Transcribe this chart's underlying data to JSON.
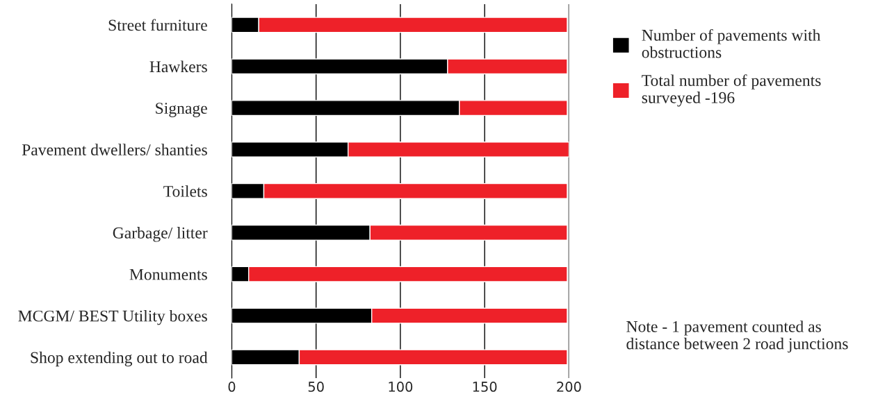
{
  "chart_data": {
    "type": "bar",
    "orientation": "horizontal",
    "stacked": true,
    "categories": [
      "Street furniture",
      "Hawkers",
      "Signage",
      "Pavement dwellers/ shanties",
      "Toilets",
      "Garbage/ litter",
      "Monuments",
      "MCGM/ BEST Utility boxes",
      "Shop extending out to road"
    ],
    "series": [
      {
        "name": "Number of pavements with\nobstructions",
        "color": "#000000",
        "values": [
          16,
          128,
          135,
          69,
          19,
          82,
          10,
          83,
          40
        ]
      },
      {
        "name": "Total number of pavements\nsurveyed -196",
        "color": "#ee2129",
        "values": [
          183,
          71,
          64,
          131,
          180,
          117,
          189,
          116,
          159
        ]
      }
    ],
    "xlim": [
      0,
      200
    ],
    "xticks": [
      0,
      50,
      100,
      150,
      200
    ],
    "grid": "x",
    "legend": "top right",
    "annotations": [
      "Note - 1 pavement counted as\ndistance between 2 road junctions"
    ]
  }
}
